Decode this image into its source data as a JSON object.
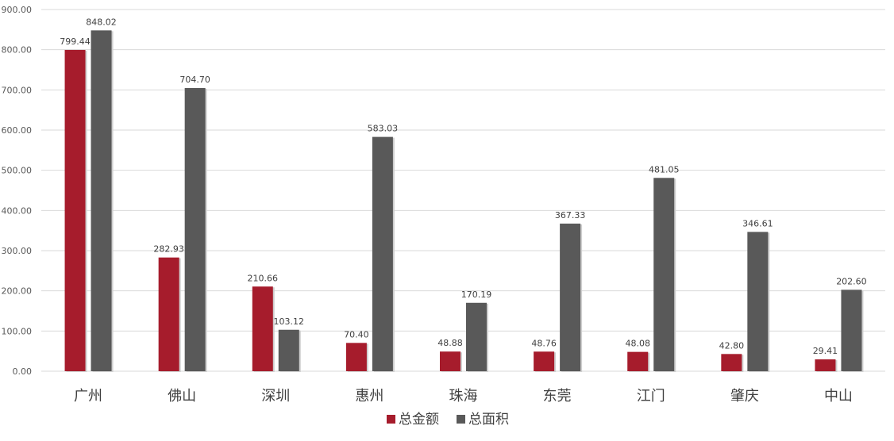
{
  "chart_data": {
    "type": "bar",
    "categories": [
      "广州",
      "佛山",
      "深圳",
      "惠州",
      "珠海",
      "东莞",
      "江门",
      "肇庆",
      "中山"
    ],
    "series": [
      {
        "name": "总金额",
        "color": "#a61c2c",
        "values": [
          799.44,
          282.93,
          210.66,
          70.4,
          48.88,
          48.76,
          48.08,
          42.8,
          29.41
        ]
      },
      {
        "name": "总面积",
        "color": "#595959",
        "values": [
          848.02,
          704.7,
          103.12,
          583.03,
          170.19,
          367.33,
          481.05,
          346.61,
          202.6
        ]
      }
    ],
    "ylim": [
      0,
      900
    ],
    "yticks": [
      "0.00",
      "100.00",
      "200.00",
      "300.00",
      "400.00",
      "500.00",
      "600.00",
      "700.00",
      "800.00",
      "900.00"
    ],
    "title": "",
    "xlabel": "",
    "ylabel": "",
    "grid": true,
    "legend": "bottom-center",
    "data_labels": true
  }
}
